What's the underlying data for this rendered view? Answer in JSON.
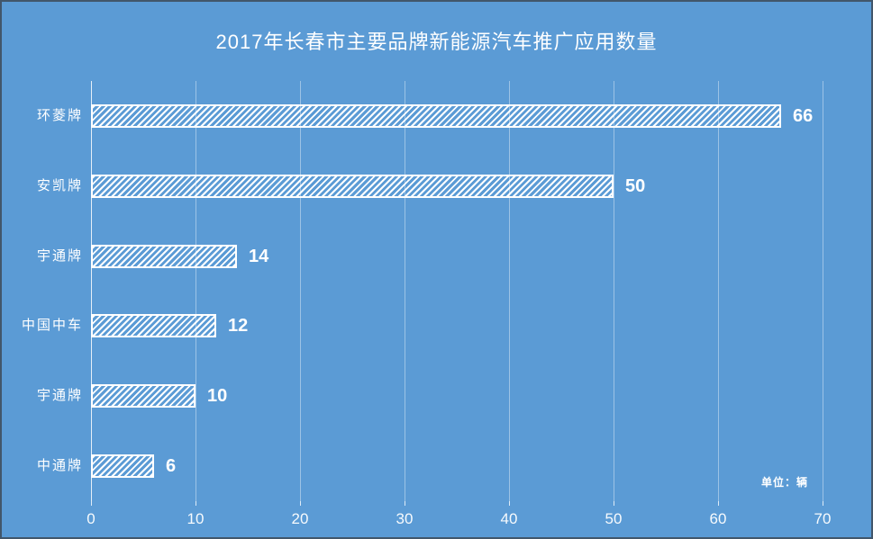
{
  "title": "2017年长春市主要品牌新能源汽车推广应用数量",
  "unit_label": "单位：辆",
  "colors": {
    "background": "#5B9BD5",
    "frame_border": "#42566A",
    "bar_stripe": "#FFFFFF",
    "bar_border": "#FFFFFF",
    "text": "#FFFFFF",
    "gridline": "rgba(255,255,255,0.40)",
    "axis_line": "rgba(255,255,255,0.85)"
  },
  "chart_data": {
    "type": "bar",
    "orientation": "horizontal",
    "title": "2017年长春市主要品牌新能源汽车推广应用数量",
    "categories": [
      "环菱牌",
      "安凯牌",
      "宇通牌",
      "中国中车",
      "宇通牌",
      "中通牌"
    ],
    "values": [
      66,
      50,
      14,
      12,
      10,
      6
    ],
    "xlabel": "",
    "ylabel": "",
    "xlim": [
      0,
      70
    ],
    "x_ticks": [
      0,
      10,
      20,
      30,
      40,
      50,
      60,
      70
    ],
    "grid": true,
    "legend": false,
    "bar_style": "white-diagonal-hatch",
    "unit": "单位：辆"
  }
}
